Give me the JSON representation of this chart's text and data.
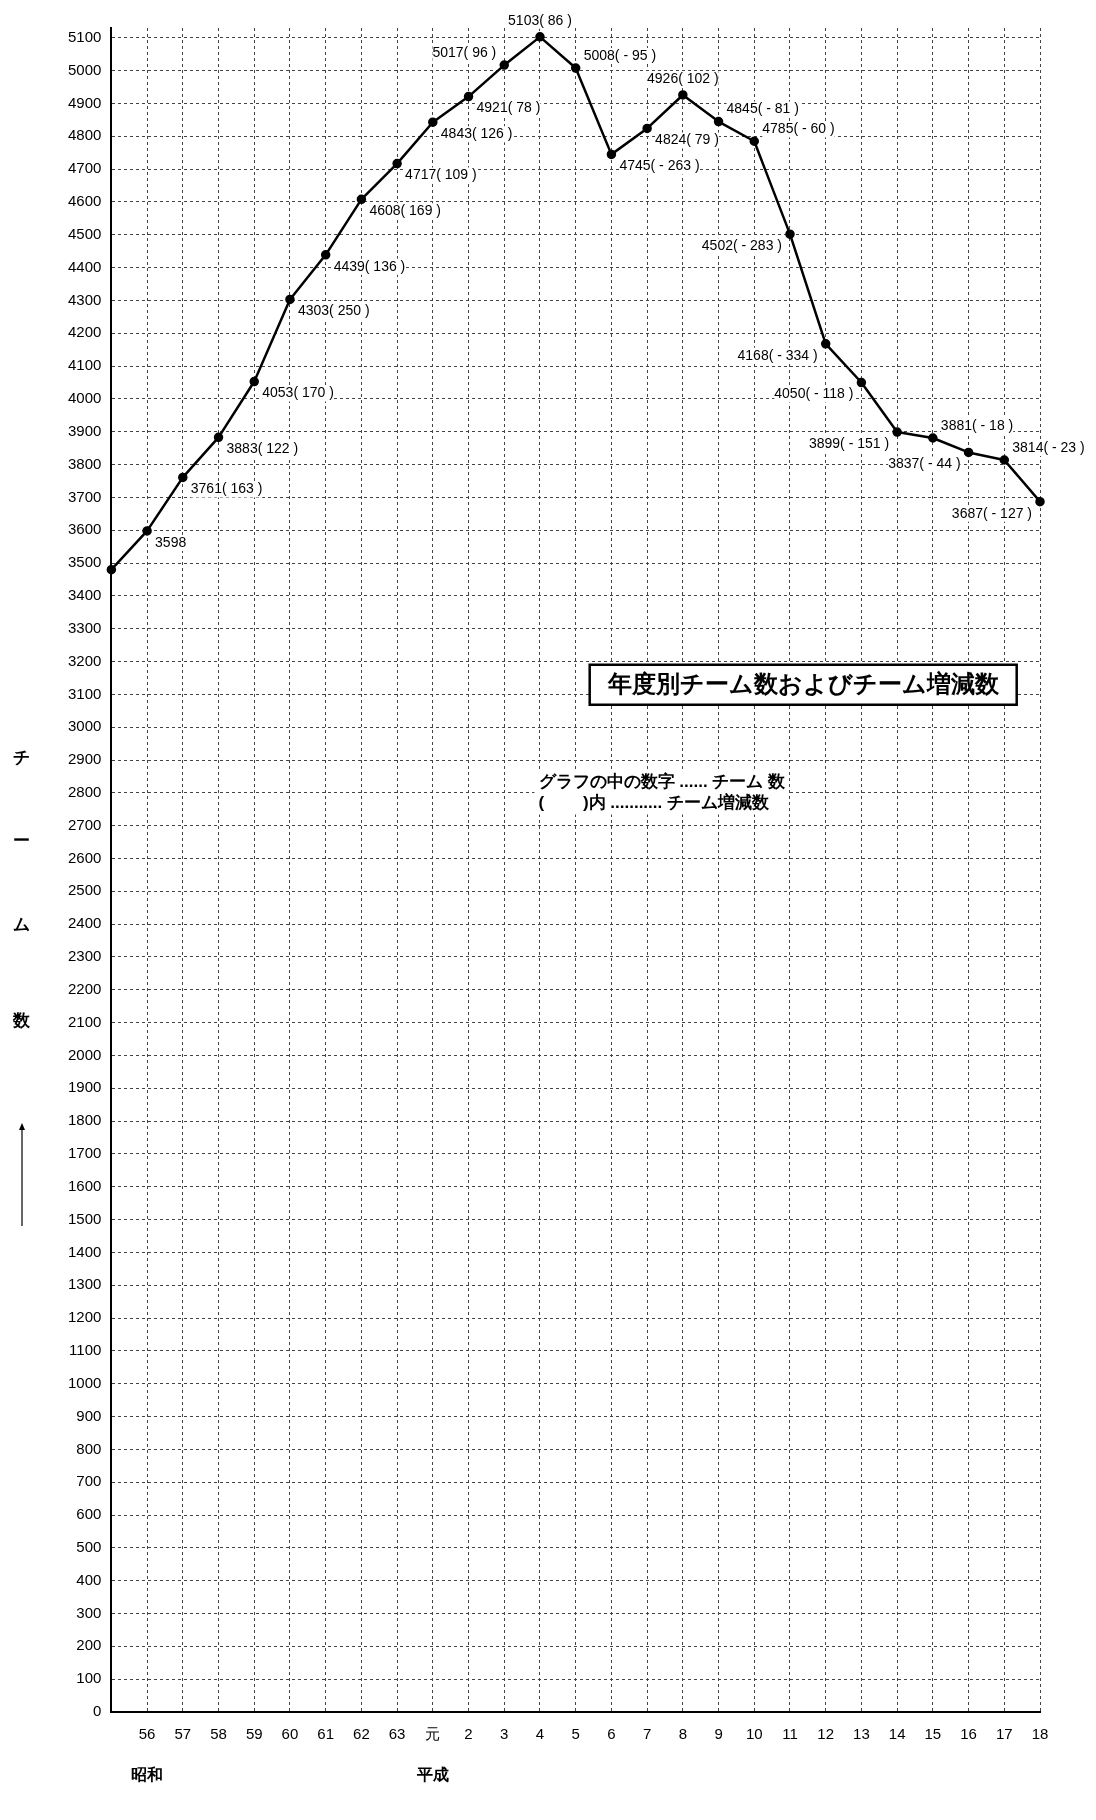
{
  "chart_data": {
    "type": "line",
    "title": "年度別チーム数およびチーム増減数",
    "ylabel": "チーム数",
    "categories": [
      null,
      "56",
      "57",
      "58",
      "59",
      "60",
      "61",
      "62",
      "63",
      "元",
      "2",
      "3",
      "4",
      "5",
      "6",
      "7",
      "8",
      "9",
      "10",
      "11",
      "12",
      "13",
      "14",
      "15",
      "16",
      "17",
      "18"
    ],
    "series": [
      {
        "color": "#000000",
        "values": [
          3480,
          3598,
          3761,
          3883,
          4053,
          4303,
          4439,
          4608,
          4717,
          4843,
          4921,
          5017,
          5103,
          5008,
          4745,
          4824,
          4926,
          4845,
          4785,
          4502,
          4168,
          4050,
          3899,
          3881,
          3837,
          3814,
          3687
        ],
        "value_labels": [
          null,
          "3598",
          "3761( 163 )",
          "3883( 122 )",
          "4053( 170 )",
          "4303( 250 )",
          "4439( 136 )",
          "4608( 169 )",
          "4717( 109 )",
          "4843( 126 )",
          "4921( 78 )",
          "5017( 96 )",
          "5103( 86 )",
          "5008( - 95 )",
          "4745( - 263 )",
          "4824( 79 )",
          "4926( 102 )",
          "4845( - 81 )",
          "4785( - 60 )",
          "4502( - 283 )",
          "4168( - 334 )",
          "4050( - 118 )",
          "3899( - 151 )",
          "3881( - 18 )",
          "3837( - 44 )",
          "3814( - 23 )",
          "3687( - 127 )"
        ]
      }
    ],
    "ylim": [
      0,
      5130
    ],
    "yticks": [
      0,
      100,
      200,
      300,
      400,
      500,
      600,
      700,
      800,
      900,
      1000,
      1100,
      1200,
      1300,
      1400,
      1500,
      1600,
      1700,
      1800,
      1900,
      2000,
      2100,
      2200,
      2300,
      2400,
      2500,
      2600,
      2700,
      2800,
      2900,
      3000,
      3100,
      3200,
      3300,
      3400,
      3500,
      3600,
      3700,
      3800,
      3900,
      4000,
      4100,
      4200,
      4300,
      4400,
      4500,
      4600,
      4700,
      4800,
      4900,
      5000,
      5100
    ],
    "grid": true,
    "legend": false,
    "marker": "circle",
    "line_style": "solid",
    "annotations": [
      "昭和",
      "平成",
      "グラフの中の数字 ...... チーム 数",
      "(　　 )内 ........... チーム増減数"
    ]
  }
}
